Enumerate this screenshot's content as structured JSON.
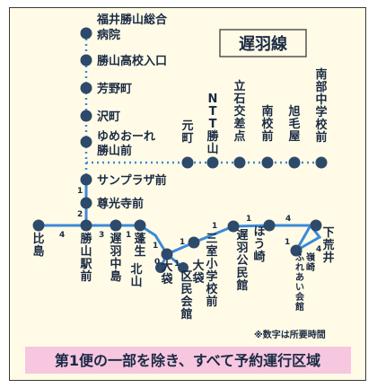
{
  "title": "遅羽線",
  "note": "※数字は所要時間",
  "banner": "第1便の一部を除き、すべて予約運行区域",
  "colors": {
    "line": "#3b8ad9",
    "stop": "#2e4a6a",
    "banner": "#f7c6df",
    "background": "#fffbe6"
  },
  "stops": {
    "fukui_katsuyama_hospital": "福井勝山総合病院",
    "katsuyama_koko": "勝山高校入口",
    "yoshino": "芳野町",
    "sawa": "沢町",
    "yumeore": "ゆめおーれ勝山前",
    "sunplaza": "サンプラザ前",
    "sonkoji": "尊光寺前",
    "hishima": "比島",
    "katsuyama_station": "勝山駅前",
    "osobanaka": "遅羽中島",
    "hose": "蓬生",
    "kitayama": "北山",
    "ofukuro": "大袋",
    "ofukuro_kominkan": "大袋区民会館",
    "mimuro": "三室小学校前",
    "osoba_kominkan": "遅羽公民館",
    "hozaki": "ほう崎",
    "hozaki_fureai": "嶺崎ふれあい会館",
    "shimoarai": "下荒井",
    "motomachi": "元町",
    "ntt": "NTT勝山",
    "tateishi": "立石交差点",
    "nankou": "南校前",
    "asahige": "旭毛屋",
    "nanbu": "南部中学校前"
  },
  "times": {
    "sonkoji_sunplaza": "1",
    "station_sonkoji": "2",
    "hishima_station": "4",
    "station_osobanaka": "3",
    "osobanaka_hose": "1",
    "hose_ofukuro": "1",
    "ofukuro_kitayama": "0",
    "ofukuro_kominkan": "1",
    "ofukuro_mimuro": "1",
    "mimuro_osoba": "1",
    "osoba_mid": "1",
    "mid_hozaki": "4",
    "hozaki_fureai": "1",
    "fureai_shimoarai": "4"
  }
}
